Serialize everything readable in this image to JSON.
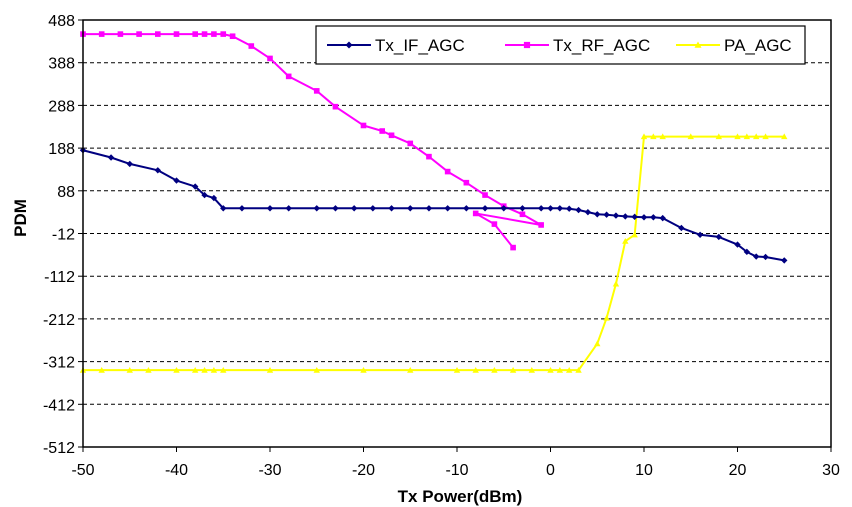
{
  "chart_data": {
    "type": "line",
    "title": "",
    "xlabel": "Tx Power(dBm)",
    "ylabel": "PDM",
    "xlim": [
      -50,
      30
    ],
    "ylim": [
      -512,
      488
    ],
    "xticks": [
      -50,
      -40,
      -30,
      -20,
      -10,
      0,
      10,
      20,
      30
    ],
    "yticks": [
      488,
      388,
      288,
      188,
      88,
      -12,
      -112,
      -212,
      -312,
      -412,
      -512
    ],
    "grid": "horizontal dashed",
    "legend_position": "top-right",
    "series": [
      {
        "name": "Tx_IF_AGC",
        "color": "#000080",
        "marker": "diamond",
        "points": [
          [
            -50,
            183
          ],
          [
            -47,
            166
          ],
          [
            -45,
            151
          ],
          [
            -42,
            136
          ],
          [
            -40,
            112
          ],
          [
            -38,
            98
          ],
          [
            -37,
            78
          ],
          [
            -36,
            71
          ],
          [
            -35,
            47
          ],
          [
            -33,
            47
          ],
          [
            -30,
            47
          ],
          [
            -28,
            47
          ],
          [
            -25,
            47
          ],
          [
            -23,
            47
          ],
          [
            -21,
            47
          ],
          [
            -19,
            47
          ],
          [
            -17,
            47
          ],
          [
            -15,
            47
          ],
          [
            -13,
            47
          ],
          [
            -11,
            47
          ],
          [
            -9,
            47
          ],
          [
            -7,
            47
          ],
          [
            -5,
            47
          ],
          [
            -3,
            47
          ],
          [
            -1,
            47
          ],
          [
            0,
            47
          ],
          [
            1,
            47
          ],
          [
            2,
            46
          ],
          [
            3,
            43
          ],
          [
            4,
            38
          ],
          [
            5,
            33
          ],
          [
            6,
            32
          ],
          [
            7,
            30
          ],
          [
            8,
            28
          ],
          [
            9,
            27
          ],
          [
            10,
            26
          ],
          [
            11,
            26
          ],
          [
            12,
            24
          ],
          [
            14,
            1
          ],
          [
            16,
            -15
          ],
          [
            18,
            -20
          ],
          [
            20,
            -38
          ],
          [
            21,
            -55
          ],
          [
            22,
            -66
          ],
          [
            23,
            -67
          ],
          [
            25,
            -75
          ]
        ]
      },
      {
        "name": "Tx_RF_AGC",
        "color": "#FF00FF",
        "marker": "square",
        "points": [
          [
            -50,
            455
          ],
          [
            -48,
            455
          ],
          [
            -46,
            455
          ],
          [
            -44,
            455
          ],
          [
            -42,
            455
          ],
          [
            -40,
            455
          ],
          [
            -38,
            455
          ],
          [
            -37,
            455
          ],
          [
            -36,
            455
          ],
          [
            -35,
            455
          ],
          [
            -34,
            450
          ],
          [
            -32,
            427
          ],
          [
            -30,
            398
          ],
          [
            -28,
            356
          ],
          [
            -25,
            322
          ],
          [
            -23,
            285
          ],
          [
            -20,
            241
          ],
          [
            -18,
            228
          ],
          [
            -17,
            218
          ],
          [
            -15,
            199
          ],
          [
            -13,
            168
          ],
          [
            -11,
            133
          ],
          [
            -9,
            107
          ],
          [
            -7,
            78
          ],
          [
            -5,
            52
          ],
          [
            -3,
            33
          ],
          [
            -1,
            8
          ],
          [
            -8,
            35
          ],
          [
            -6,
            10
          ],
          [
            -4,
            -45
          ]
        ]
      },
      {
        "name": "PA_AGC",
        "color": "#FFFF00",
        "marker": "triangle",
        "points": [
          [
            -50,
            -332
          ],
          [
            -48,
            -332
          ],
          [
            -45,
            -332
          ],
          [
            -43,
            -332
          ],
          [
            -40,
            -332
          ],
          [
            -38,
            -332
          ],
          [
            -37,
            -332
          ],
          [
            -36,
            -332
          ],
          [
            -35,
            -332
          ],
          [
            -30,
            -332
          ],
          [
            -25,
            -332
          ],
          [
            -20,
            -332
          ],
          [
            -15,
            -332
          ],
          [
            -10,
            -332
          ],
          [
            -8,
            -332
          ],
          [
            -6,
            -332
          ],
          [
            -4,
            -332
          ],
          [
            -2,
            -332
          ],
          [
            0,
            -332
          ],
          [
            1,
            -332
          ],
          [
            2,
            -332
          ],
          [
            3,
            -332
          ],
          [
            5,
            -270
          ],
          [
            6,
            -210
          ],
          [
            7,
            -130
          ],
          [
            8,
            -30
          ],
          [
            9,
            -15
          ],
          [
            10,
            215
          ],
          [
            11,
            215
          ],
          [
            12,
            215
          ],
          [
            15,
            215
          ],
          [
            18,
            215
          ],
          [
            20,
            215
          ],
          [
            21,
            215
          ],
          [
            22,
            215
          ],
          [
            23,
            215
          ],
          [
            25,
            215
          ]
        ]
      }
    ]
  }
}
